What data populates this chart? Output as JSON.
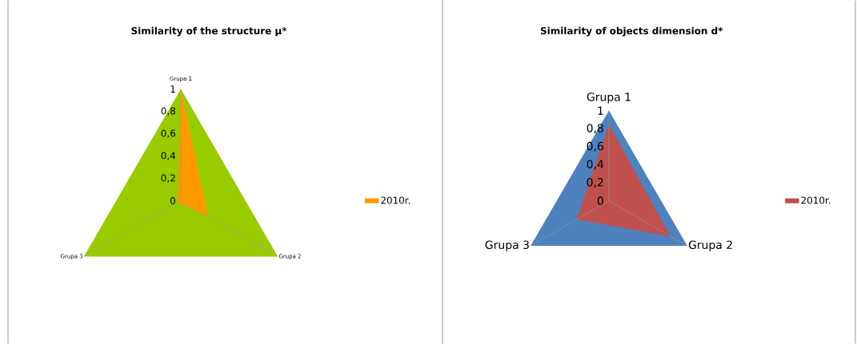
{
  "chart_data": [
    {
      "type": "radar",
      "title": "Similarity of the structure μ*",
      "categories": [
        "Grupa 1",
        "Grupa 2",
        "Grupa 3"
      ],
      "series": [
        {
          "name": "2010r.",
          "color": "#ff9900",
          "values": [
            1,
            0.28,
            0.03
          ]
        }
      ],
      "ylim": [
        0,
        1
      ],
      "yticks": [
        0,
        {
          "value": 0.2,
          "label": "0,2"
        },
        {
          "value": 0.4,
          "label": "0,4"
        },
        {
          "value": 0.6,
          "label": "0,6"
        },
        {
          "value": 0.8,
          "label": "0,8"
        },
        1
      ],
      "legend": "right"
    },
    {
      "type": "radar",
      "title": "Similarity of objects dimension d*",
      "categories": [
        "Grupa 1",
        "Grupa 2",
        "Grupa 3"
      ],
      "series": [
        {
          "name": "2010r.",
          "color": "#c0504d",
          "values": [
            0.84,
            0.78,
            0.41
          ]
        }
      ],
      "ylim": [
        0,
        1
      ],
      "yticks": [
        0,
        {
          "value": 0.2,
          "label": "0,2"
        },
        {
          "value": 0.4,
          "label": "0,4"
        },
        {
          "value": 0.6,
          "label": "0,6"
        },
        {
          "value": 0.8,
          "label": "0,8"
        },
        1
      ],
      "legend": "right"
    }
  ]
}
